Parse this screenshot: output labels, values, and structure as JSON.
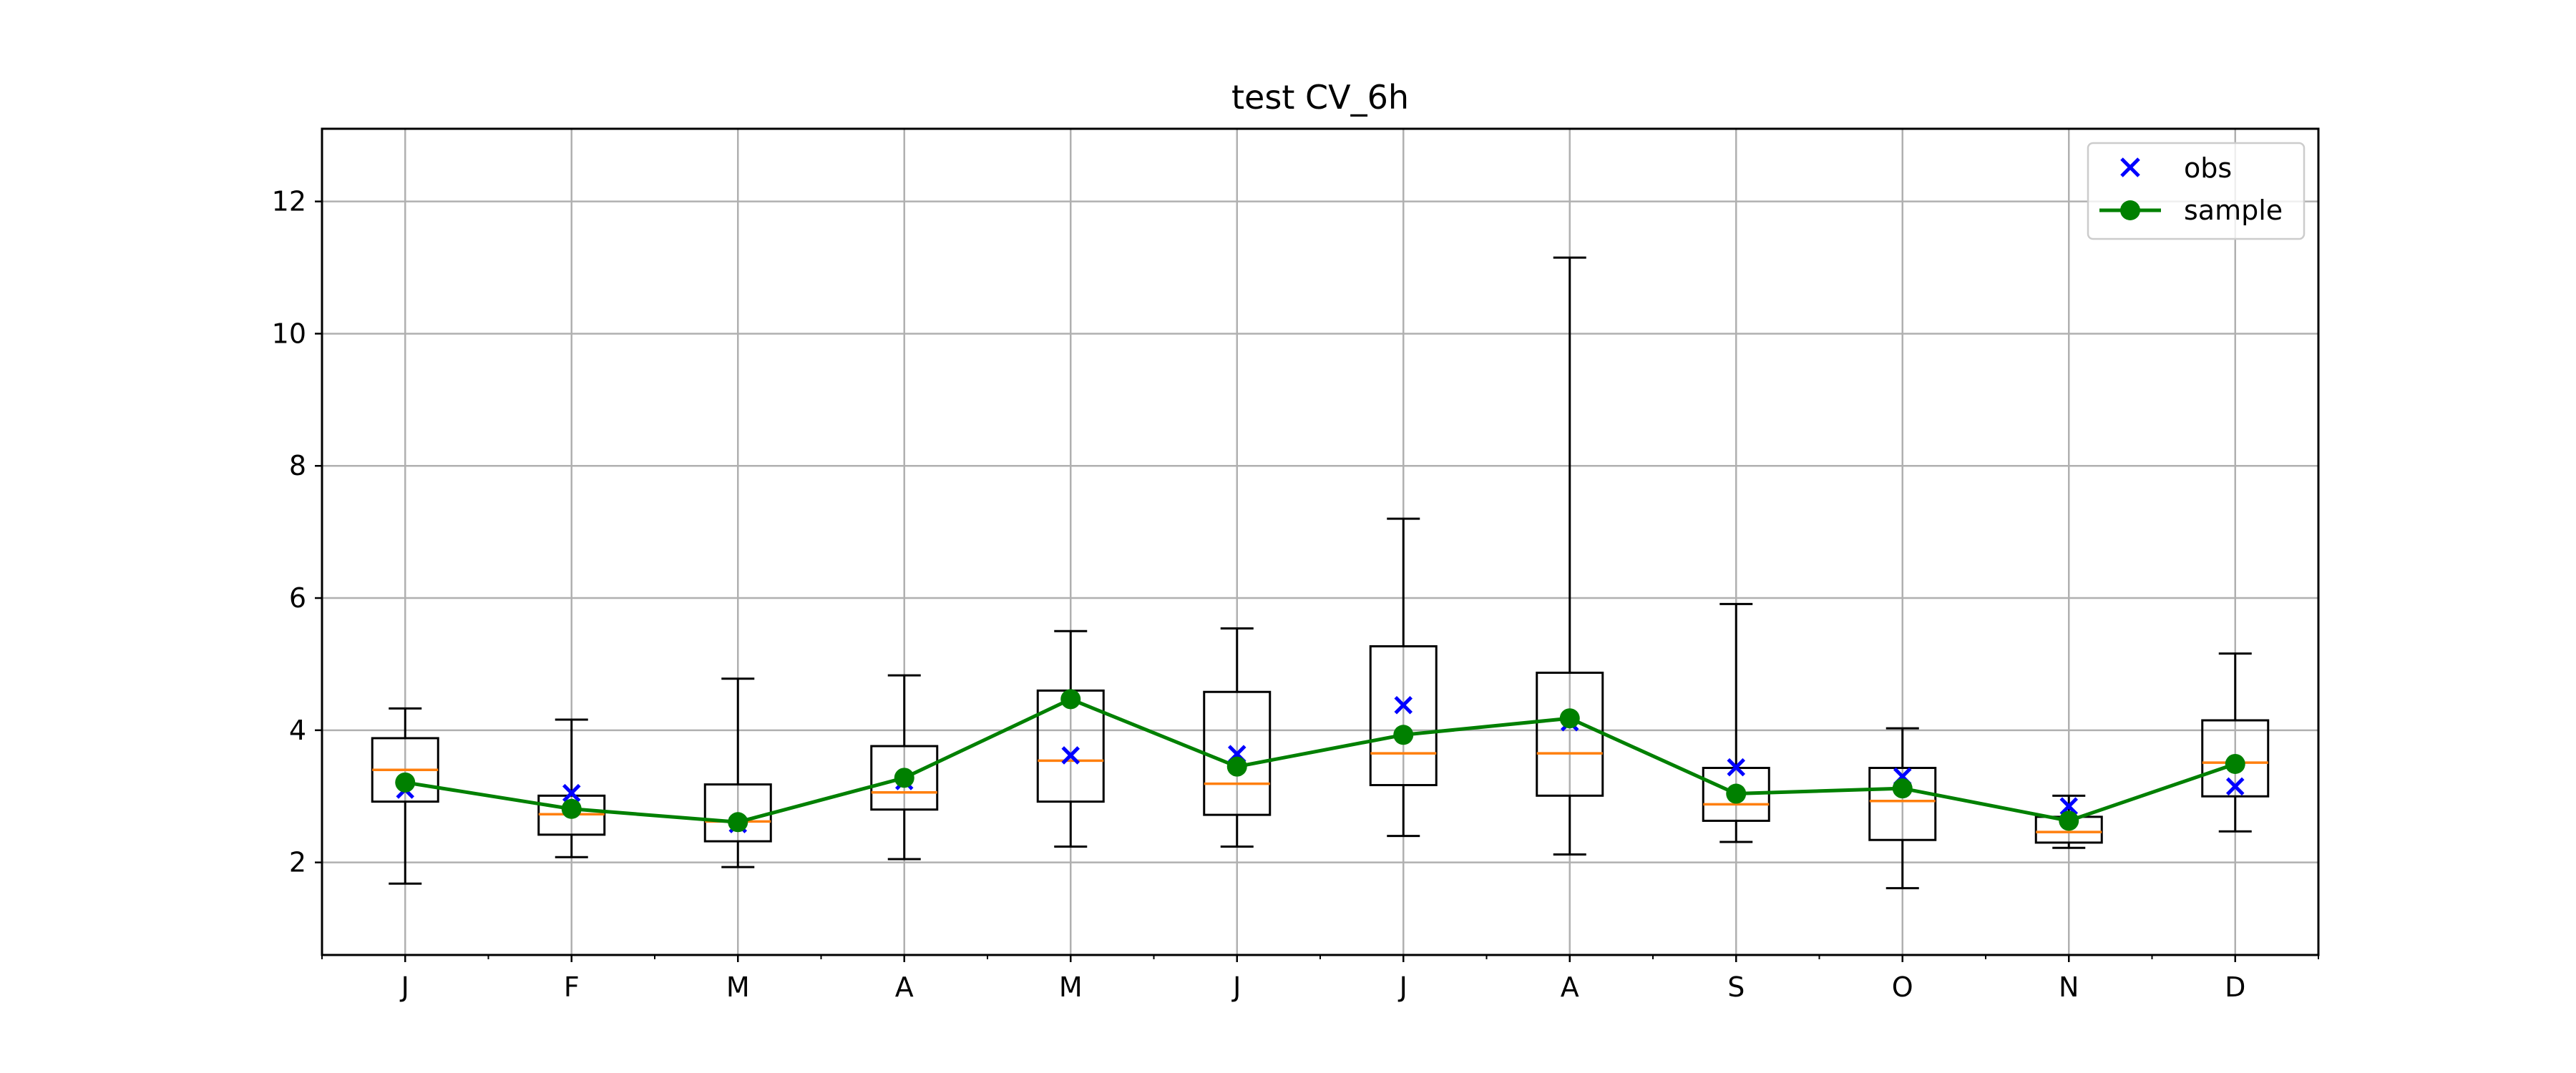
{
  "chart_data": {
    "type": "box",
    "title": "test CV_6h",
    "xlabel": "",
    "ylabel": "",
    "ylim": [
      0.6,
      13.1
    ],
    "yticks": [
      2,
      4,
      6,
      8,
      10,
      12
    ],
    "grid": true,
    "legend_position": "top-right",
    "categories": [
      "J",
      "F",
      "M",
      "A",
      "M",
      "J",
      "J",
      "A",
      "S",
      "O",
      "N",
      "D"
    ],
    "boxes": [
      {
        "whisker_low": 1.68,
        "q1": 2.92,
        "median": 3.4,
        "q3": 3.88,
        "whisker_high": 4.33
      },
      {
        "whisker_low": 2.08,
        "q1": 2.42,
        "median": 2.73,
        "q3": 3.01,
        "whisker_high": 4.16
      },
      {
        "whisker_low": 1.93,
        "q1": 2.32,
        "median": 2.62,
        "q3": 3.18,
        "whisker_high": 4.78
      },
      {
        "whisker_low": 2.05,
        "q1": 2.8,
        "median": 3.06,
        "q3": 3.76,
        "whisker_high": 4.83
      },
      {
        "whisker_low": 2.24,
        "q1": 2.92,
        "median": 3.54,
        "q3": 4.6,
        "whisker_high": 5.5
      },
      {
        "whisker_low": 2.24,
        "q1": 2.72,
        "median": 3.19,
        "q3": 4.58,
        "whisker_high": 5.54
      },
      {
        "whisker_low": 2.4,
        "q1": 3.17,
        "median": 3.65,
        "q3": 5.27,
        "whisker_high": 7.2
      },
      {
        "whisker_low": 2.12,
        "q1": 3.01,
        "median": 3.65,
        "q3": 4.87,
        "whisker_high": 11.15
      },
      {
        "whisker_low": 2.31,
        "q1": 2.63,
        "median": 2.88,
        "q3": 3.43,
        "whisker_high": 5.91
      },
      {
        "whisker_low": 1.61,
        "q1": 2.34,
        "median": 2.93,
        "q3": 3.43,
        "whisker_high": 4.03
      },
      {
        "whisker_low": 2.22,
        "q1": 2.3,
        "median": 2.46,
        "q3": 2.69,
        "whisker_high": 3.01
      },
      {
        "whisker_low": 2.47,
        "q1": 3.0,
        "median": 3.51,
        "q3": 4.15,
        "whisker_high": 5.16
      }
    ],
    "series": [
      {
        "name": "obs",
        "marker": "x",
        "color": "#0000ff",
        "values": [
          3.1,
          3.05,
          2.58,
          3.23,
          3.62,
          3.64,
          4.38,
          4.12,
          3.44,
          3.3,
          2.85,
          3.15
        ]
      },
      {
        "name": "sample",
        "marker": "o-line",
        "color": "#008000",
        "values": [
          3.21,
          2.81,
          2.61,
          3.28,
          4.47,
          3.45,
          3.93,
          4.18,
          3.04,
          3.12,
          2.63,
          3.49
        ]
      }
    ],
    "median_color": "#ff7f0e"
  }
}
